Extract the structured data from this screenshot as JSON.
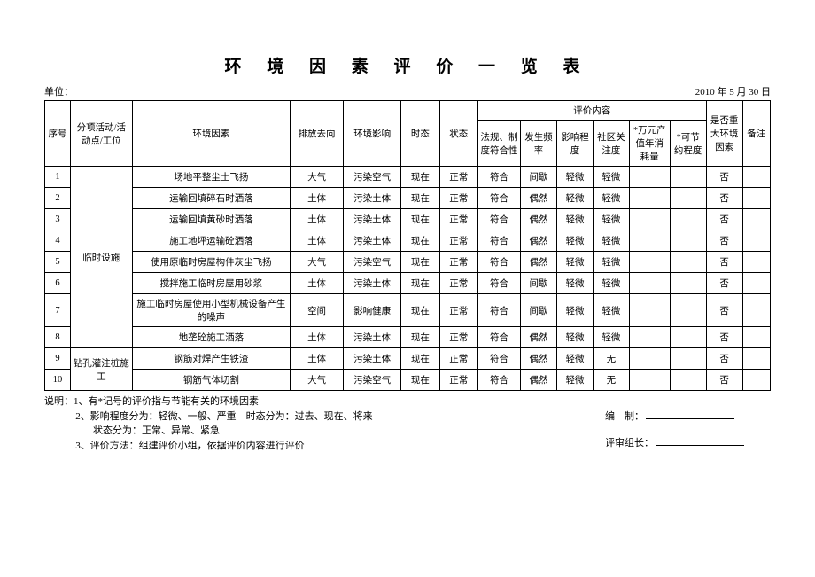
{
  "title": "环 境 因 素 评 价 一 览 表",
  "unit_label": "单位：",
  "date": "2010 年 5 月 30 日",
  "headers": {
    "seq": "序号",
    "activity": "分项活动/活动点/工位",
    "factor": "环境因素",
    "direction": "排放去向",
    "impact": "环境影响",
    "time": "时态",
    "state": "状态",
    "eval_group": "评价内容",
    "regulation": "法规、制度符合性",
    "frequency": "发生频率",
    "degree": "影响程度",
    "community": "社区关注度",
    "wanyuan": "*万元产值年消耗量",
    "saving": "*可节约程度",
    "major": "是否重大环境因素",
    "note": "备注"
  },
  "groups": [
    {
      "name": "临时设施",
      "span": 8
    },
    {
      "name": "钻孔灌注桩施 工",
      "span": 2
    }
  ],
  "rows": [
    {
      "seq": "1",
      "factor": "场地平整尘土飞扬",
      "direction": "大气",
      "impact": "污染空气",
      "time": "现在",
      "state": "正常",
      "regulation": "符合",
      "frequency": "间歇",
      "degree": "轻微",
      "community": "轻微",
      "wanyuan": "",
      "saving": "",
      "major": "否",
      "note": ""
    },
    {
      "seq": "2",
      "factor": "运输回填碎石时洒落",
      "direction": "土体",
      "impact": "污染土体",
      "time": "现在",
      "state": "正常",
      "regulation": "符合",
      "frequency": "偶然",
      "degree": "轻微",
      "community": "轻微",
      "wanyuan": "",
      "saving": "",
      "major": "否",
      "note": ""
    },
    {
      "seq": "3",
      "factor": "运输回填黄砂时洒落",
      "direction": "土体",
      "impact": "污染土体",
      "time": "现在",
      "state": "正常",
      "regulation": "符合",
      "frequency": "偶然",
      "degree": "轻微",
      "community": "轻微",
      "wanyuan": "",
      "saving": "",
      "major": "否",
      "note": ""
    },
    {
      "seq": "4",
      "factor": "施工地坪运输砼洒落",
      "direction": "土体",
      "impact": "污染土体",
      "time": "现在",
      "state": "正常",
      "regulation": "符合",
      "frequency": "偶然",
      "degree": "轻微",
      "community": "轻微",
      "wanyuan": "",
      "saving": "",
      "major": "否",
      "note": ""
    },
    {
      "seq": "5",
      "factor": "使用原临时房屋构件灰尘飞扬",
      "direction": "大气",
      "impact": "污染空气",
      "time": "现在",
      "state": "正常",
      "regulation": "符合",
      "frequency": "偶然",
      "degree": "轻微",
      "community": "轻微",
      "wanyuan": "",
      "saving": "",
      "major": "否",
      "note": ""
    },
    {
      "seq": "6",
      "factor": "搅拌施工临时房屋用砂浆",
      "direction": "土体",
      "impact": "污染土体",
      "time": "现在",
      "state": "正常",
      "regulation": "符合",
      "frequency": "间歇",
      "degree": "轻微",
      "community": "轻微",
      "wanyuan": "",
      "saving": "",
      "major": "否",
      "note": ""
    },
    {
      "seq": "7",
      "factor": "施工临时房屋使用小型机械设备产生的噪声",
      "direction": "空间",
      "impact": "影响健康",
      "time": "现在",
      "state": "正常",
      "regulation": "符合",
      "frequency": "间歇",
      "degree": "轻微",
      "community": "轻微",
      "wanyuan": "",
      "saving": "",
      "major": "否",
      "note": ""
    },
    {
      "seq": "8",
      "factor": "地垄砼施工洒落",
      "direction": "土体",
      "impact": "污染土体",
      "time": "现在",
      "state": "正常",
      "regulation": "符合",
      "frequency": "偶然",
      "degree": "轻微",
      "community": "轻微",
      "wanyuan": "",
      "saving": "",
      "major": "否",
      "note": ""
    },
    {
      "seq": "9",
      "factor": "钢筋对焊产生铁渣",
      "direction": "土体",
      "impact": "污染土体",
      "time": "现在",
      "state": "正常",
      "regulation": "符合",
      "frequency": "偶然",
      "degree": "轻微",
      "community": "无",
      "wanyuan": "",
      "saving": "",
      "major": "否",
      "note": ""
    },
    {
      "seq": "10",
      "factor": "钢筋气体切割",
      "direction": "大气",
      "impact": "污染空气",
      "time": "现在",
      "state": "正常",
      "regulation": "符合",
      "frequency": "偶然",
      "degree": "轻微",
      "community": "无",
      "wanyuan": "",
      "saving": "",
      "major": "否",
      "note": ""
    }
  ],
  "notes": {
    "label": "说明：",
    "line1": "1、有*记号的评价指与节能有关的环境因素",
    "line2a": "2、影响程度分为：轻微、一般、严重　时态分为：过去、现在、将来",
    "line2b": "状态分为：正常、异常、紧急",
    "line3": "3、评价方法：组建评价小组，依据评价内容进行评价",
    "compiled": "编　制：",
    "leader": "评审组长："
  }
}
